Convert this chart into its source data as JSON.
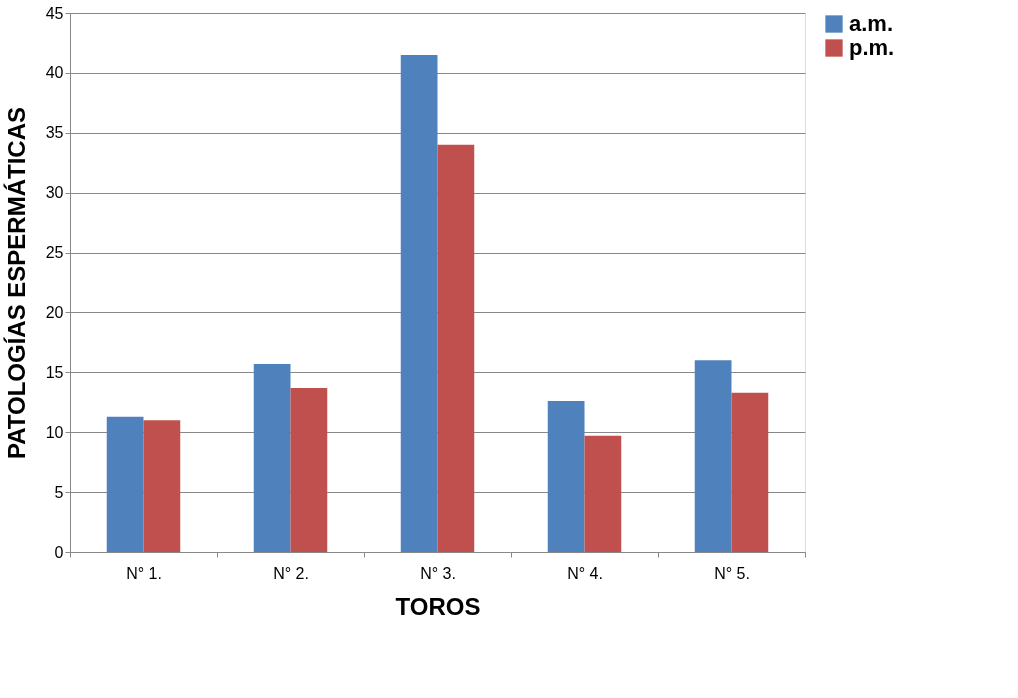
{
  "chart_data": {
    "type": "bar",
    "xlabel": "TOROS",
    "ylabel": "PATOLOGÍAS ESPERMÁTICAS",
    "categories": [
      "N° 1.",
      "N° 2.",
      "N° 3.",
      "N° 4.",
      "N° 5."
    ],
    "series": [
      {
        "name": "a.m.",
        "color": "#4f81bd",
        "values": [
          11.3,
          15.7,
          41.5,
          12.6,
          16.0
        ]
      },
      {
        "name": "p.m.",
        "color": "#c0504d",
        "values": [
          11.0,
          13.7,
          34.0,
          9.7,
          13.3
        ]
      }
    ],
    "ylim": [
      0,
      45
    ],
    "yticks": [
      0,
      5,
      10,
      15,
      20,
      25,
      30,
      35,
      40,
      45
    ],
    "grid": "y",
    "legend": "right"
  }
}
